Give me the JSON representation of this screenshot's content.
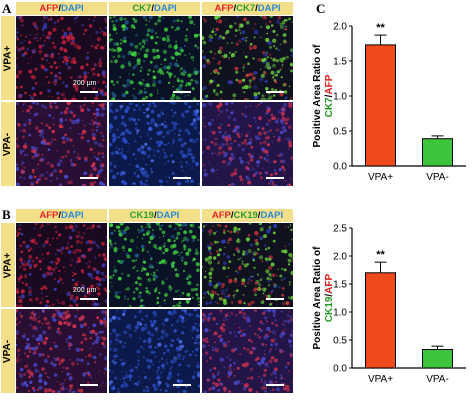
{
  "panelA": {
    "label": "A",
    "cols": [
      [
        {
          "t": "AFP",
          "c": "r"
        },
        {
          "t": "/",
          "c": "k"
        },
        {
          "t": "DAPI",
          "c": "b"
        }
      ],
      [
        {
          "t": "CK7",
          "c": "g"
        },
        {
          "t": "/",
          "c": "k"
        },
        {
          "t": "DAPI",
          "c": "b"
        }
      ],
      [
        {
          "t": "AFP",
          "c": "r"
        },
        {
          "t": "/",
          "c": "k"
        },
        {
          "t": "CK7",
          "c": "g"
        },
        {
          "t": "/",
          "c": "k"
        },
        {
          "t": "DAPI",
          "c": "b"
        }
      ]
    ],
    "rows": [
      "VPA+",
      "VPA-"
    ],
    "scale_text": "200 μm"
  },
  "panelB": {
    "label": "B",
    "cols": [
      [
        {
          "t": "AFP",
          "c": "r"
        },
        {
          "t": "/",
          "c": "k"
        },
        {
          "t": "DAPI",
          "c": "b"
        }
      ],
      [
        {
          "t": "CK19",
          "c": "g"
        },
        {
          "t": "/",
          "c": "k"
        },
        {
          "t": "DAPI",
          "c": "b"
        }
      ],
      [
        {
          "t": "AFP",
          "c": "r"
        },
        {
          "t": "/",
          "c": "k"
        },
        {
          "t": "CK19",
          "c": "g"
        },
        {
          "t": "/",
          "c": "k"
        },
        {
          "t": "DAPI",
          "c": "b"
        }
      ]
    ],
    "rows": [
      "VPA+",
      "VPA-"
    ],
    "scale_text": "200 μm"
  },
  "panelC": {
    "label": "C"
  },
  "chart_data": [
    {
      "type": "bar",
      "categories": [
        "VPA+",
        "VPA-"
      ],
      "values": [
        1.73,
        0.39
      ],
      "errors": [
        0.14,
        0.04
      ],
      "colors": [
        "#f04a1c",
        "#3cc43c"
      ],
      "ylabel_parts": [
        {
          "t": "Positive Area Ratio of",
          "c": "#000000"
        }
      ],
      "ylabel_parts2": [
        {
          "t": "CK7",
          "c": "#1f9a1f"
        },
        {
          "t": "/",
          "c": "#000000"
        },
        {
          "t": "AFP",
          "c": "#e0201c"
        }
      ],
      "ylim": [
        0,
        2.0
      ],
      "yticks": [
        "0.0",
        "0.5",
        "1.0",
        "1.5",
        "2.0"
      ],
      "annotations": [
        {
          "category": "VPA+",
          "text": "**"
        }
      ]
    },
    {
      "type": "bar",
      "categories": [
        "VPA+",
        "VPA-"
      ],
      "values": [
        1.7,
        0.33
      ],
      "errors": [
        0.19,
        0.06
      ],
      "colors": [
        "#f04a1c",
        "#3cc43c"
      ],
      "ylabel_parts": [
        {
          "t": "Positive Area Ratio of",
          "c": "#000000"
        }
      ],
      "ylabel_parts2": [
        {
          "t": "CK19",
          "c": "#1f9a1f"
        },
        {
          "t": "/",
          "c": "#000000"
        },
        {
          "t": "AFP",
          "c": "#e0201c"
        }
      ],
      "ylim": [
        0,
        2.5
      ],
      "yticks": [
        "0.0",
        "0.5",
        "1.0",
        "1.5",
        "2.0",
        "2.5"
      ],
      "annotations": [
        {
          "category": "VPA+",
          "text": "**"
        }
      ]
    }
  ]
}
